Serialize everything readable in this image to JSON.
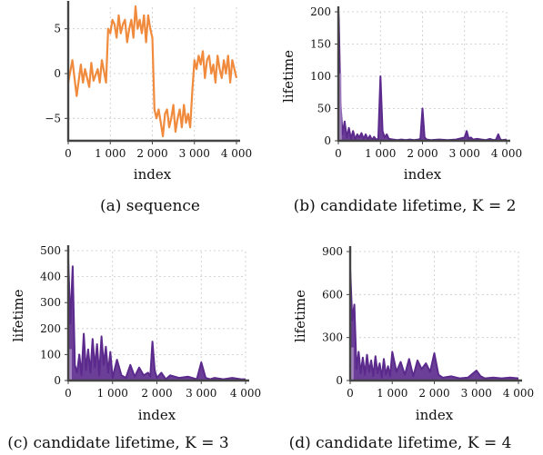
{
  "colors": {
    "sequence": "#f08a3c",
    "lifetime_line": "#5b2a8c",
    "lifetime_fill": "#c9b3dc"
  },
  "chart_data": [
    {
      "type": "line",
      "caption": "(a) sequence",
      "xlabel": "index",
      "ylabel": "",
      "xlim": [
        0,
        4000
      ],
      "ylim": [
        -7.5,
        7.5
      ],
      "xticks": [
        0,
        1000,
        2000,
        3000,
        4000
      ],
      "xtick_labels": [
        "0",
        "1 000",
        "2 000",
        "3 000",
        "4 000"
      ],
      "yticks": [
        -5,
        0,
        5
      ],
      "ytick_labels": [
        "−5",
        "0",
        "5"
      ],
      "grid": true,
      "series": [
        {
          "x": [
            0,
            100,
            150,
            200,
            300,
            350,
            400,
            500,
            550,
            600,
            700,
            750,
            800,
            900,
            950,
            1000,
            1050,
            1100,
            1150,
            1200,
            1250,
            1300,
            1350,
            1400,
            1450,
            1500,
            1550,
            1600,
            1650,
            1700,
            1750,
            1800,
            1850,
            1900,
            1950,
            2000,
            2050,
            2100,
            2150,
            2200,
            2250,
            2300,
            2350,
            2400,
            2450,
            2500,
            2550,
            2600,
            2650,
            2700,
            2750,
            2800,
            2850,
            2900,
            2950,
            3000,
            3050,
            3100,
            3150,
            3200,
            3250,
            3300,
            3350,
            3400,
            3450,
            3500,
            3550,
            3600,
            3650,
            3700,
            3750,
            3800,
            3850,
            3900,
            3950,
            4000
          ],
          "y": [
            -1,
            1.5,
            -0.5,
            -2.5,
            1,
            -1,
            0.5,
            -1.5,
            1.2,
            -0.8,
            0.5,
            -1,
            1.5,
            -1,
            5,
            4.5,
            6,
            5.5,
            4,
            6.5,
            4.5,
            5.5,
            6,
            3.5,
            5,
            6,
            4,
            7.5,
            5,
            6,
            4.5,
            6.5,
            3.5,
            6.5,
            5,
            4,
            -4,
            -5,
            -4,
            -5.5,
            -7,
            -4.5,
            -4,
            -6,
            -5,
            -3.5,
            -6.5,
            -5,
            -4,
            -6,
            -3.5,
            -5.5,
            -4.5,
            -6,
            -2,
            1.5,
            0.5,
            2,
            1,
            2.5,
            -0.5,
            1.5,
            2,
            0,
            1,
            -1,
            2,
            0.5,
            -0.5,
            1.5,
            0,
            2,
            -1,
            1.5,
            0.5,
            -0.5
          ]
        }
      ]
    },
    {
      "type": "area",
      "caption": "(b) candidate lifetime, K = 2",
      "xlabel": "index",
      "ylabel": "lifetime",
      "xlim": [
        0,
        4000
      ],
      "ylim": [
        0,
        200
      ],
      "xticks": [
        0,
        1000,
        2000,
        3000,
        4000
      ],
      "xtick_labels": [
        "0",
        "1 000",
        "2 000",
        "3 000",
        "4 000"
      ],
      "yticks": [
        0,
        50,
        100,
        150,
        200
      ],
      "ytick_labels": [
        "0",
        "50",
        "100",
        "150",
        "200"
      ],
      "grid": true,
      "series": [
        {
          "x": [
            0,
            10,
            50,
            100,
            150,
            200,
            250,
            300,
            350,
            400,
            450,
            500,
            550,
            600,
            650,
            700,
            750,
            800,
            850,
            900,
            950,
            1000,
            1050,
            1100,
            1150,
            1200,
            1300,
            1400,
            1500,
            1600,
            1700,
            1800,
            1900,
            1950,
            2000,
            2050,
            2100,
            2200,
            2400,
            2600,
            2800,
            3000,
            3050,
            3100,
            3150,
            3200,
            3300,
            3400,
            3500,
            3600,
            3700,
            3750,
            3800,
            3850,
            3900,
            4000
          ],
          "y": [
            200,
            190,
            60,
            10,
            30,
            5,
            20,
            3,
            15,
            2,
            10,
            5,
            12,
            3,
            10,
            2,
            8,
            1,
            6,
            2,
            3,
            100,
            15,
            5,
            10,
            3,
            2,
            1,
            2,
            1,
            2,
            1,
            2,
            3,
            50,
            5,
            2,
            1,
            2,
            1,
            2,
            5,
            15,
            3,
            5,
            2,
            3,
            2,
            1,
            3,
            1,
            2,
            10,
            2,
            1,
            2
          ]
        }
      ]
    },
    {
      "type": "area",
      "caption": "(c) candidate lifetime, K = 3",
      "xlabel": "index",
      "ylabel": "lifetime",
      "xlim": [
        0,
        4000
      ],
      "ylim": [
        0,
        500
      ],
      "xticks": [
        0,
        1000,
        2000,
        3000,
        4000
      ],
      "xtick_labels": [
        "0",
        "1 000",
        "2 000",
        "3 000",
        "4 000"
      ],
      "yticks": [
        0,
        100,
        200,
        300,
        400,
        500
      ],
      "ytick_labels": [
        "0",
        "100",
        "200",
        "300",
        "400",
        "500"
      ],
      "grid": true,
      "series": [
        {
          "x": [
            0,
            50,
            100,
            150,
            200,
            250,
            300,
            350,
            400,
            450,
            500,
            550,
            600,
            650,
            700,
            750,
            800,
            850,
            900,
            950,
            1000,
            1100,
            1200,
            1300,
            1400,
            1500,
            1600,
            1700,
            1800,
            1850,
            1900,
            1950,
            2000,
            2100,
            2200,
            2300,
            2500,
            2700,
            2900,
            3000,
            3100,
            3200,
            3300,
            3500,
            3700,
            3900,
            4000
          ],
          "y": [
            470,
            220,
            440,
            60,
            30,
            100,
            20,
            180,
            40,
            120,
            30,
            160,
            50,
            140,
            20,
            170,
            60,
            130,
            30,
            110,
            10,
            80,
            20,
            10,
            60,
            15,
            50,
            20,
            30,
            15,
            150,
            40,
            10,
            30,
            5,
            20,
            10,
            15,
            5,
            70,
            10,
            5,
            10,
            5,
            10,
            5,
            5
          ]
        }
      ]
    },
    {
      "type": "area",
      "caption": "(d) candidate lifetime, K = 4",
      "xlabel": "index",
      "ylabel": "lifetime",
      "xlim": [
        0,
        4000
      ],
      "ylim": [
        0,
        900
      ],
      "xticks": [
        0,
        1000,
        2000,
        3000,
        4000
      ],
      "xtick_labels": [
        "0",
        "1 000",
        "2 000",
        "3 000",
        "4 000"
      ],
      "yticks": [
        0,
        300,
        600,
        900
      ],
      "ytick_labels": [
        "0",
        "300",
        "600",
        "900"
      ],
      "grid": true,
      "series": [
        {
          "x": [
            0,
            50,
            100,
            150,
            200,
            250,
            300,
            350,
            400,
            450,
            500,
            550,
            600,
            650,
            700,
            750,
            800,
            850,
            900,
            950,
            1000,
            1100,
            1200,
            1300,
            1400,
            1500,
            1600,
            1700,
            1800,
            1900,
            2000,
            2100,
            2200,
            2400,
            2600,
            2800,
            3000,
            3100,
            3200,
            3400,
            3600,
            3800,
            4000
          ],
          "y": [
            780,
            420,
            530,
            80,
            200,
            50,
            160,
            40,
            180,
            60,
            140,
            30,
            170,
            50,
            120,
            20,
            150,
            40,
            100,
            30,
            200,
            60,
            130,
            40,
            150,
            30,
            140,
            80,
            120,
            60,
            190,
            40,
            20,
            30,
            15,
            20,
            70,
            30,
            15,
            20,
            15,
            20,
            15
          ]
        }
      ]
    }
  ]
}
